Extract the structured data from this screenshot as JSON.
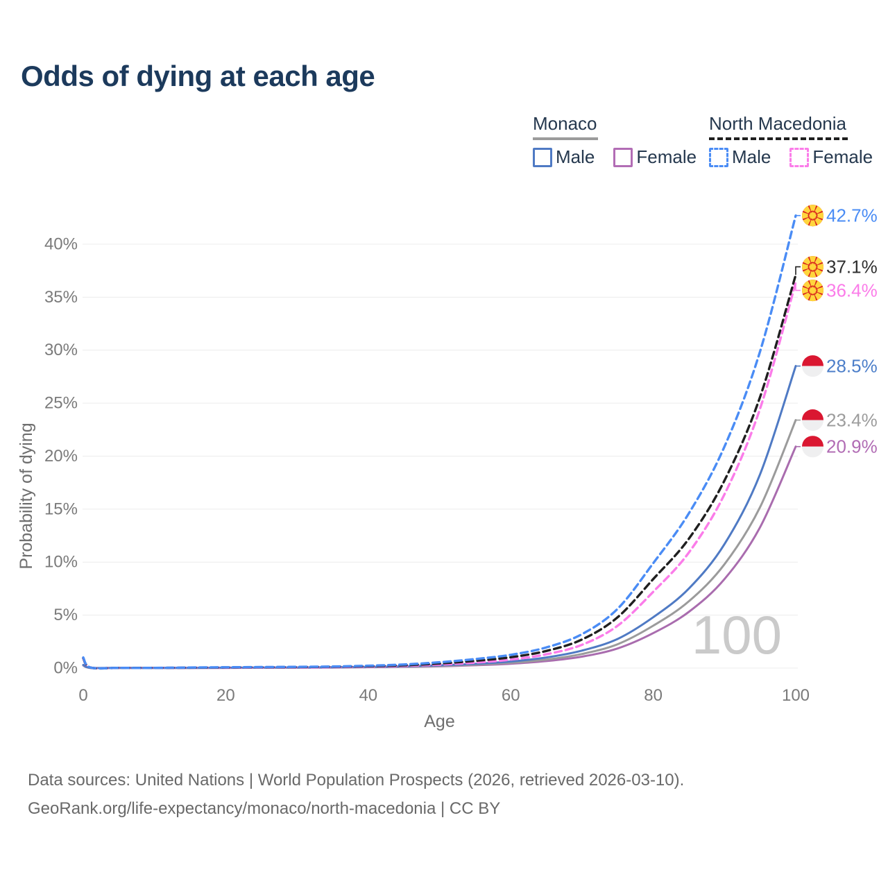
{
  "title": "Odds of dying at each age",
  "legend": {
    "groups": [
      {
        "header": "Monaco",
        "line_style": "solid",
        "line_color": "#9b9b9b",
        "items": [
          {
            "label": "Male",
            "color": "#4f7ac4",
            "style": "solid"
          },
          {
            "label": "Female",
            "color": "#b26db5",
            "style": "solid"
          }
        ]
      },
      {
        "header": "North Macedonia",
        "line_style": "dashed",
        "line_color": "#1f1f1f",
        "items": [
          {
            "label": "Male",
            "color": "#4a8cf5",
            "style": "dashed"
          },
          {
            "label": "Female",
            "color": "#fb7ce9",
            "style": "dashed"
          }
        ]
      }
    ]
  },
  "footer": {
    "line1": "Data sources: United Nations | World Population Prospects (2026, retrieved 2026-03-10).",
    "line2": "GeoRank.org/life-expectancy/monaco/north-macedonia | CC BY"
  },
  "chart_data": {
    "type": "line",
    "title": "Odds of dying at each age",
    "xlabel": "Age",
    "ylabel": "Probability of dying",
    "x_ticks": [
      0,
      20,
      40,
      60,
      80,
      100
    ],
    "y_tick_labels": [
      "0%",
      "5%",
      "10%",
      "15%",
      "20%",
      "25%",
      "30%",
      "35%",
      "40%"
    ],
    "y_tick_step_pct": 5,
    "xlim": [
      0,
      100
    ],
    "ylim_pct": [
      0,
      43
    ],
    "grid": true,
    "legend_position": "top-right",
    "age_counter": "100",
    "ages": [
      0,
      1,
      5,
      10,
      15,
      20,
      25,
      30,
      35,
      40,
      45,
      50,
      55,
      60,
      65,
      70,
      75,
      80,
      85,
      90,
      95,
      100
    ],
    "series": [
      {
        "id": "nm-male",
        "name": "North Macedonia Male",
        "country": "North Macedonia",
        "sex": "Male",
        "style": "dashed",
        "color": "#4a8cf5",
        "label_color": "#4a8cf5",
        "flag": "mk",
        "end_label": "42.7%",
        "end_value_pct": 42.7,
        "values": [
          1.0,
          0.06,
          0.02,
          0.02,
          0.05,
          0.08,
          0.1,
          0.12,
          0.15,
          0.22,
          0.34,
          0.55,
          0.85,
          1.25,
          1.95,
          3.2,
          5.6,
          9.9,
          14.6,
          20.9,
          29.9,
          42.7
        ]
      },
      {
        "id": "nm-both",
        "name": "North Macedonia Both sexes",
        "country": "North Macedonia",
        "sex": "Both sexes",
        "style": "dashed",
        "color": "#1f1f1f",
        "label_color": "#2f2f2f",
        "flag": "mk",
        "end_label": "37.1%",
        "end_value_pct": 37.1,
        "values": [
          0.95,
          0.05,
          0.02,
          0.02,
          0.04,
          0.06,
          0.08,
          0.1,
          0.13,
          0.18,
          0.27,
          0.43,
          0.68,
          1.02,
          1.62,
          2.7,
          4.8,
          8.4,
          12.2,
          17.7,
          25.6,
          37.1
        ]
      },
      {
        "id": "nm-female",
        "name": "North Macedonia Female",
        "country": "North Macedonia",
        "sex": "Female",
        "style": "dashed",
        "color": "#fb7ce9",
        "label_color": "#fb7ce9",
        "flag": "mk",
        "end_label": "36.4%",
        "end_value_pct": 36.4,
        "values": [
          0.9,
          0.05,
          0.01,
          0.01,
          0.03,
          0.04,
          0.05,
          0.07,
          0.1,
          0.14,
          0.21,
          0.33,
          0.52,
          0.8,
          1.3,
          2.2,
          4.0,
          7.2,
          10.9,
          16.4,
          24.5,
          36.4
        ]
      },
      {
        "id": "mc-male",
        "name": "Monaco Male",
        "country": "Monaco",
        "sex": "Male",
        "style": "solid",
        "color": "#4f7ac4",
        "label_color": "#4c7ec9",
        "flag": "mc",
        "end_label": "28.5%",
        "end_value_pct": 28.5,
        "values": [
          0.3,
          0.03,
          0.01,
          0.01,
          0.02,
          0.04,
          0.05,
          0.06,
          0.08,
          0.11,
          0.17,
          0.26,
          0.4,
          0.62,
          1.0,
          1.65,
          2.75,
          4.8,
          7.5,
          11.7,
          18.3,
          28.5
        ]
      },
      {
        "id": "mc-both",
        "name": "Monaco Both sexes",
        "country": "Monaco",
        "sex": "Both sexes",
        "style": "solid",
        "color": "#9b9b9b",
        "label_color": "#9c9c9c",
        "flag": "mc",
        "end_label": "23.4%",
        "end_value_pct": 23.4,
        "values": [
          0.28,
          0.02,
          0.01,
          0.01,
          0.02,
          0.03,
          0.04,
          0.05,
          0.07,
          0.09,
          0.14,
          0.21,
          0.33,
          0.5,
          0.8,
          1.33,
          2.25,
          4.0,
          6.3,
          9.8,
          15.2,
          23.4
        ]
      },
      {
        "id": "mc-female",
        "name": "Monaco Female",
        "country": "Monaco",
        "sex": "Female",
        "style": "solid",
        "color": "#a96cae",
        "label_color": "#b16cb4",
        "flag": "mc",
        "end_label": "20.9%",
        "end_value_pct": 20.9,
        "values": [
          0.25,
          0.02,
          0.01,
          0.01,
          0.01,
          0.02,
          0.03,
          0.04,
          0.05,
          0.08,
          0.11,
          0.17,
          0.27,
          0.41,
          0.66,
          1.08,
          1.85,
          3.3,
          5.3,
          8.4,
          13.3,
          20.9
        ]
      }
    ]
  }
}
